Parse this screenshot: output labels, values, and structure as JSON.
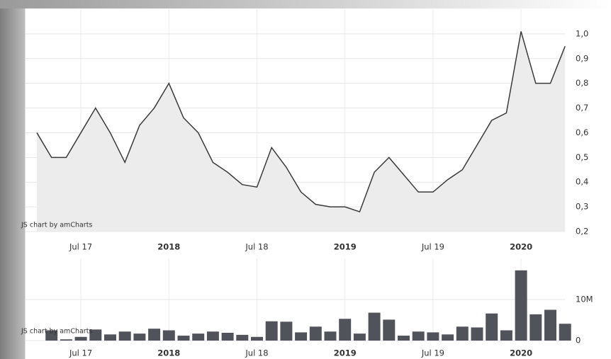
{
  "chart_data": [
    {
      "type": "area",
      "credit": "JS chart by amCharts",
      "categories": [
        null,
        null,
        null,
        "Jul 17",
        null,
        null,
        null,
        null,
        null,
        "2018",
        null,
        null,
        null,
        null,
        null,
        "Jul 18",
        null,
        null,
        null,
        null,
        null,
        "2019",
        null,
        null,
        null,
        null,
        null,
        "Jul 19",
        null,
        null,
        null,
        null,
        null,
        "2020",
        null,
        null,
        null
      ],
      "values": [
        0.6,
        0.5,
        0.5,
        0.6,
        0.7,
        0.6,
        0.48,
        0.63,
        0.7,
        0.8,
        0.66,
        0.6,
        0.48,
        0.44,
        0.39,
        0.38,
        0.54,
        0.46,
        0.36,
        0.31,
        0.3,
        0.3,
        0.28,
        0.44,
        0.5,
        0.43,
        0.36,
        0.36,
        0.41,
        0.45,
        0.55,
        0.65,
        0.68,
        1.01,
        0.8,
        0.8,
        0.95
      ],
      "color": "#3a3a3a",
      "fill": "#ececec",
      "ylim": [
        0.2,
        1.1
      ],
      "yticks": [
        {
          "value": 0.2,
          "label": "0,2"
        },
        {
          "value": 0.3,
          "label": "0,3"
        },
        {
          "value": 0.4,
          "label": "0,4"
        },
        {
          "value": 0.5,
          "label": "0,5"
        },
        {
          "value": 0.6,
          "label": "0,6"
        },
        {
          "value": 0.7,
          "label": "0,7"
        },
        {
          "value": 0.8,
          "label": "0,8"
        },
        {
          "value": 0.9,
          "label": "0,9"
        },
        {
          "value": 1.0,
          "label": "1,0"
        }
      ],
      "grid": true
    },
    {
      "type": "bar",
      "credit": "JS chart by amCharts",
      "categories": [
        null,
        null,
        null,
        "Jul 17",
        null,
        null,
        null,
        null,
        null,
        "2018",
        null,
        null,
        null,
        null,
        null,
        "Jul 18",
        null,
        null,
        null,
        null,
        null,
        "2019",
        null,
        null,
        null,
        null,
        null,
        "Jul 19",
        null,
        null,
        null,
        null,
        null,
        "2020",
        null,
        null,
        null
      ],
      "values": [
        null,
        2500000,
        300000,
        900000,
        2700000,
        1500000,
        2200000,
        1700000,
        2900000,
        2500000,
        1200000,
        1700000,
        2200000,
        1900000,
        1400000,
        900000,
        4700000,
        4600000,
        2000000,
        3400000,
        2200000,
        5300000,
        1700000,
        6800000,
        5100000,
        1200000,
        2200000,
        2000000,
        1500000,
        3400000,
        3200000,
        6600000,
        2500000,
        17100000,
        6400000,
        7500000,
        4100000
      ],
      "color": "#50535a",
      "ylim": [
        0,
        20000000
      ],
      "yticks": [
        0,
        {
          "value": 10000000,
          "label": "10M"
        }
      ],
      "grid": true
    }
  ]
}
